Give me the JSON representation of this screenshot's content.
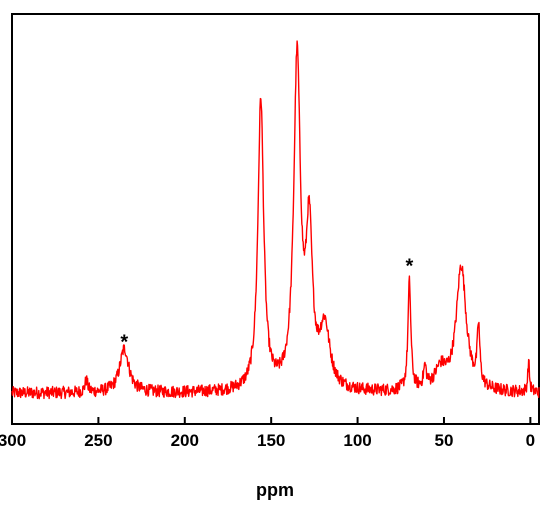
{
  "chart_data": {
    "type": "line",
    "title": "",
    "xlabel": "ppm",
    "ylabel": "",
    "xlim": [
      300,
      -5
    ],
    "ylim": [
      -0.05,
      1.0
    ],
    "x_reversed": true,
    "grid": false,
    "legend": "none",
    "x_ticks": [
      300,
      250,
      200,
      150,
      100,
      50,
      0
    ],
    "series_color": "#ff0000",
    "annotations": [
      {
        "text": "*",
        "x": 235,
        "y": 0.155
      },
      {
        "text": "*",
        "x": 70,
        "y": 0.38
      }
    ],
    "peaks": [
      {
        "x": 257,
        "y": 0.035,
        "w": 1.0
      },
      {
        "x": 235,
        "y": 0.13,
        "w": 3.2
      },
      {
        "x": 156,
        "y": 0.86,
        "w": 2.0
      },
      {
        "x": 135,
        "y": 0.97,
        "w": 2.3
      },
      {
        "x": 128,
        "y": 0.45,
        "w": 2.2
      },
      {
        "x": 119,
        "y": 0.18,
        "w": 3.5
      },
      {
        "x": 70,
        "y": 0.32,
        "w": 1.0
      },
      {
        "x": 61,
        "y": 0.06,
        "w": 1.0
      },
      {
        "x": 52,
        "y": 0.06,
        "w": 4.0
      },
      {
        "x": 40,
        "y": 0.37,
        "w": 3.5
      },
      {
        "x": 30,
        "y": 0.17,
        "w": 0.9
      },
      {
        "x": 1,
        "y": 0.09,
        "w": 0.6
      }
    ],
    "baseline": 0.0,
    "noise_amplitude": 0.018
  }
}
